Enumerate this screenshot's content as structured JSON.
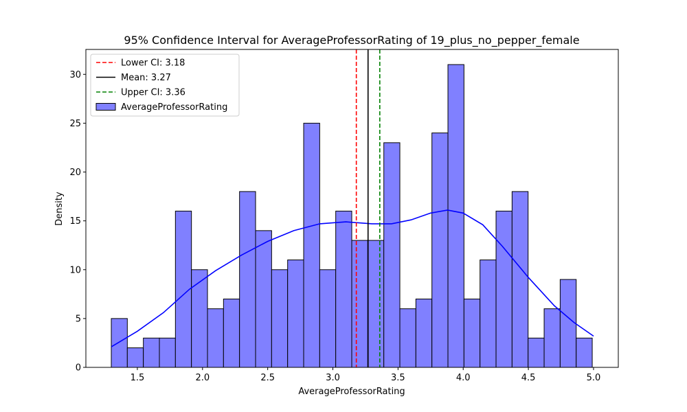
{
  "chart_data": {
    "type": "bar",
    "title": "95% Confidence Interval for AverageProfessorRating of 19_plus_no_pepper_female",
    "xlabel": "AverageProfessorRating",
    "ylabel": "Density",
    "xlim": [
      1.105,
      5.19
    ],
    "ylim": [
      0,
      32.55
    ],
    "xticks": [
      1.5,
      2.0,
      2.5,
      3.0,
      3.5,
      4.0,
      4.5,
      5.0
    ],
    "xtick_labels": [
      "1.5",
      "2.0",
      "2.5",
      "3.0",
      "3.5",
      "4.0",
      "4.5",
      "5.0"
    ],
    "yticks": [
      0,
      5,
      10,
      15,
      20,
      25,
      30
    ],
    "ytick_labels": [
      "0",
      "5",
      "10",
      "15",
      "20",
      "25",
      "30"
    ],
    "histogram": {
      "name": "AverageProfessorRating",
      "bin_start": 1.3,
      "bin_width": 0.123,
      "values": [
        5,
        2,
        3,
        3,
        16,
        10,
        6,
        7,
        18,
        14,
        10,
        11,
        25,
        10,
        16,
        13,
        13,
        23,
        6,
        7,
        24,
        31,
        7,
        11,
        16,
        18,
        3,
        6,
        9,
        3
      ],
      "color": "#8080ff",
      "edge_color": "#000000"
    },
    "kde": {
      "color": "#0000ff",
      "x": [
        1.3,
        1.5,
        1.7,
        1.9,
        2.1,
        2.3,
        2.5,
        2.7,
        2.9,
        3.1,
        3.3,
        3.45,
        3.6,
        3.75,
        3.88,
        4.0,
        4.15,
        4.3,
        4.5,
        4.7,
        4.85,
        5.0
      ],
      "y": [
        2.1,
        3.7,
        5.6,
        8.0,
        9.9,
        11.5,
        12.9,
        14.0,
        14.7,
        14.9,
        14.7,
        14.7,
        15.1,
        15.8,
        16.1,
        15.8,
        14.6,
        12.4,
        9.2,
        6.3,
        4.6,
        3.2
      ]
    },
    "vlines": [
      {
        "name": "Lower CI: 3.18",
        "x": 3.18,
        "color": "#ff0000",
        "style": "dashed"
      },
      {
        "name": "Mean: 3.27",
        "x": 3.27,
        "color": "#000000",
        "style": "solid"
      },
      {
        "name": "Upper CI: 3.36",
        "x": 3.36,
        "color": "#008000",
        "style": "dashed"
      }
    ],
    "legend": {
      "placement": "top-left",
      "entries": [
        {
          "label": "Lower CI: 3.18",
          "kind": "dashed-line",
          "color": "#ff0000"
        },
        {
          "label": "Mean: 3.27",
          "kind": "solid-line",
          "color": "#000000"
        },
        {
          "label": "Upper CI: 3.36",
          "kind": "dashed-line",
          "color": "#008000"
        },
        {
          "label": "AverageProfessorRating",
          "kind": "patch",
          "color": "#8080ff"
        }
      ]
    },
    "grid": false
  }
}
